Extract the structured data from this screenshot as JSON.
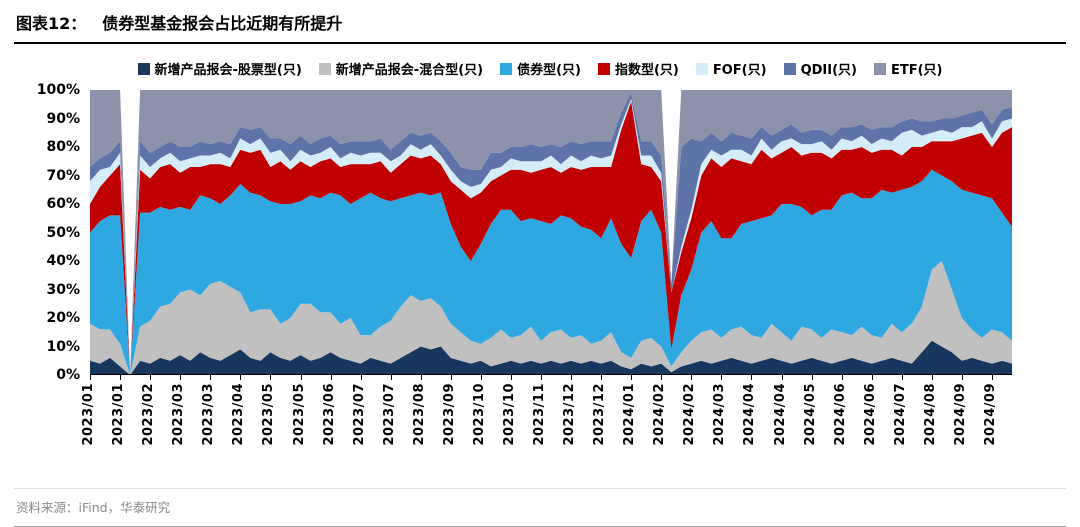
{
  "header": {
    "figure_label": "图表12：",
    "title": "债券型基金报会占比近期有所提升"
  },
  "footer": {
    "source": "资料来源：iFind，华泰研究"
  },
  "chart_data": {
    "type": "area",
    "variant": "stacked-100-percent",
    "title": "债券型基金报会占比近期有所提升",
    "legend_position": "top",
    "gridlines": false,
    "ylim": [
      0,
      100
    ],
    "ytick_labels": [
      "0%",
      "10%",
      "20%",
      "30%",
      "40%",
      "50%",
      "60%",
      "70%",
      "80%",
      "90%",
      "100%"
    ],
    "xtick_interval": 3,
    "xtick_labels": [
      "2023/01",
      "2023/01",
      "2023/02",
      "2023/03",
      "2023/03",
      "2023/04",
      "2023/05",
      "2023/05",
      "2023/06",
      "2023/07",
      "2023/07",
      "2023/08",
      "2023/09",
      "2023/10",
      "2023/10",
      "2023/11",
      "2023/12",
      "2023/12",
      "2024/01",
      "2024/02",
      "2024/02",
      "2024/03",
      "2024/04",
      "2024/04",
      "2024/05",
      "2024/06",
      "2024/06",
      "2024/07",
      "2024/08",
      "2024/09",
      "2024/09"
    ],
    "series": [
      {
        "key": "equity",
        "name": "新增产品报会-股票型(只)",
        "color": "#17375e",
        "values": [
          5,
          4,
          6,
          3,
          0,
          5,
          4,
          6,
          5,
          7,
          5,
          8,
          6,
          5,
          7,
          9,
          6,
          5,
          8,
          6,
          5,
          7,
          5,
          6,
          8,
          6,
          5,
          4,
          6,
          5,
          4,
          6,
          8,
          10,
          9,
          10,
          6,
          5,
          4,
          5,
          3,
          4,
          5,
          4,
          5,
          4,
          5,
          4,
          5,
          4,
          5,
          4,
          5,
          3,
          2,
          4,
          3,
          4,
          1,
          3,
          4,
          5,
          4,
          5,
          6,
          5,
          4,
          5,
          6,
          5,
          4,
          5,
          6,
          5,
          4,
          5,
          6,
          5,
          4,
          5,
          6,
          5,
          4,
          8,
          12,
          10,
          8,
          5,
          6,
          5,
          4,
          5,
          4
        ]
      },
      {
        "key": "hybrid",
        "name": "新增产品报会-混合型(只)",
        "color": "#c0c0c0",
        "values": [
          13,
          12,
          10,
          8,
          0,
          12,
          15,
          18,
          20,
          22,
          25,
          20,
          26,
          28,
          24,
          20,
          16,
          18,
          15,
          12,
          15,
          18,
          20,
          16,
          14,
          12,
          15,
          10,
          8,
          12,
          15,
          18,
          20,
          16,
          18,
          14,
          12,
          10,
          8,
          6,
          10,
          12,
          8,
          10,
          12,
          8,
          10,
          12,
          8,
          10,
          6,
          8,
          10,
          5,
          4,
          8,
          10,
          6,
          2,
          5,
          8,
          10,
          12,
          8,
          10,
          12,
          10,
          8,
          12,
          10,
          8,
          12,
          10,
          8,
          12,
          10,
          8,
          12,
          10,
          8,
          12,
          10,
          14,
          16,
          25,
          30,
          22,
          15,
          10,
          8,
          12,
          10,
          8
        ]
      },
      {
        "key": "bond",
        "name": "债券型(只)",
        "color": "#2fa8e1",
        "values": [
          32,
          38,
          40,
          45,
          0,
          40,
          38,
          35,
          33,
          30,
          28,
          35,
          30,
          27,
          32,
          38,
          42,
          40,
          38,
          42,
          40,
          36,
          38,
          40,
          42,
          45,
          40,
          48,
          50,
          45,
          42,
          38,
          35,
          38,
          36,
          40,
          35,
          30,
          28,
          35,
          40,
          42,
          45,
          40,
          38,
          42,
          38,
          40,
          42,
          38,
          40,
          36,
          40,
          38,
          35,
          42,
          45,
          40,
          6,
          20,
          25,
          35,
          38,
          35,
          32,
          36,
          40,
          42,
          38,
          45,
          48,
          42,
          40,
          45,
          42,
          48,
          50,
          45,
          48,
          52,
          46,
          50,
          48,
          44,
          35,
          30,
          38,
          45,
          48,
          50,
          46,
          42,
          40
        ]
      },
      {
        "key": "index",
        "name": "指数型(只)",
        "color": "#c00000",
        "values": [
          10,
          12,
          14,
          18,
          0,
          15,
          12,
          14,
          16,
          12,
          15,
          10,
          12,
          14,
          10,
          12,
          14,
          16,
          12,
          15,
          12,
          14,
          10,
          13,
          12,
          10,
          14,
          12,
          10,
          13,
          10,
          12,
          14,
          12,
          14,
          10,
          15,
          20,
          22,
          18,
          15,
          12,
          14,
          18,
          16,
          18,
          20,
          15,
          18,
          20,
          22,
          25,
          18,
          40,
          55,
          20,
          15,
          18,
          20,
          15,
          18,
          20,
          22,
          25,
          28,
          22,
          20,
          24,
          20,
          18,
          20,
          18,
          22,
          20,
          18,
          16,
          15,
          18,
          16,
          14,
          15,
          12,
          14,
          12,
          10,
          12,
          14,
          18,
          20,
          22,
          18,
          28,
          35
        ]
      },
      {
        "key": "fof",
        "name": "FOF(只)",
        "color": "#d5ecf9",
        "values": [
          8,
          6,
          3,
          4,
          0,
          5,
          4,
          3,
          4,
          4,
          3,
          4,
          3,
          4,
          3,
          4,
          3,
          4,
          5,
          4,
          3,
          4,
          4,
          3,
          4,
          3,
          4,
          3,
          4,
          3,
          4,
          3,
          4,
          3,
          4,
          3,
          4,
          3,
          4,
          3,
          4,
          3,
          4,
          3,
          4,
          3,
          4,
          3,
          4,
          3,
          4,
          3,
          4,
          2,
          1,
          3,
          4,
          3,
          0,
          2,
          3,
          4,
          3,
          4,
          3,
          4,
          3,
          4,
          3,
          4,
          3,
          4,
          3,
          4,
          3,
          4,
          3,
          4,
          3,
          4,
          3,
          8,
          6,
          4,
          3,
          4,
          3,
          4,
          3,
          4,
          3,
          4,
          3
        ]
      },
      {
        "key": "qdii",
        "name": "QDII(只)",
        "color": "#5e74a8",
        "values": [
          5,
          4,
          5,
          4,
          0,
          5,
          5,
          4,
          4,
          5,
          4,
          5,
          4,
          4,
          5,
          4,
          5,
          4,
          5,
          4,
          6,
          5,
          4,
          5,
          4,
          5,
          4,
          5,
          4,
          5,
          4,
          5,
          4,
          5,
          4,
          5,
          6,
          5,
          6,
          5,
          6,
          5,
          4,
          5,
          6,
          5,
          4,
          6,
          5,
          6,
          5,
          6,
          5,
          4,
          2,
          5,
          5,
          6,
          3,
          35,
          25,
          8,
          6,
          5,
          6,
          5,
          6,
          4,
          5,
          4,
          5,
          4,
          5,
          4,
          5,
          4,
          5,
          4,
          5,
          4,
          5,
          4,
          4,
          5,
          4,
          4,
          5,
          4,
          5,
          4,
          5,
          4,
          4
        ]
      },
      {
        "key": "etf",
        "name": "ETF(只)",
        "color": "#8d92ab",
        "values": [
          27,
          24,
          22,
          18,
          0,
          18,
          22,
          20,
          18,
          20,
          20,
          18,
          19,
          18,
          19,
          13,
          14,
          13,
          17,
          17,
          19,
          16,
          19,
          17,
          16,
          19,
          18,
          18,
          18,
          17,
          21,
          18,
          15,
          16,
          15,
          18,
          22,
          27,
          28,
          28,
          22,
          22,
          20,
          20,
          19,
          20,
          19,
          20,
          18,
          19,
          18,
          18,
          18,
          8,
          1,
          18,
          18,
          23,
          0,
          20,
          17,
          18,
          15,
          18,
          15,
          16,
          17,
          13,
          16,
          14,
          12,
          15,
          14,
          14,
          16,
          13,
          13,
          12,
          14,
          13,
          13,
          11,
          10,
          11,
          11,
          10,
          10,
          9,
          8,
          7,
          12,
          7,
          6
        ]
      }
    ]
  }
}
